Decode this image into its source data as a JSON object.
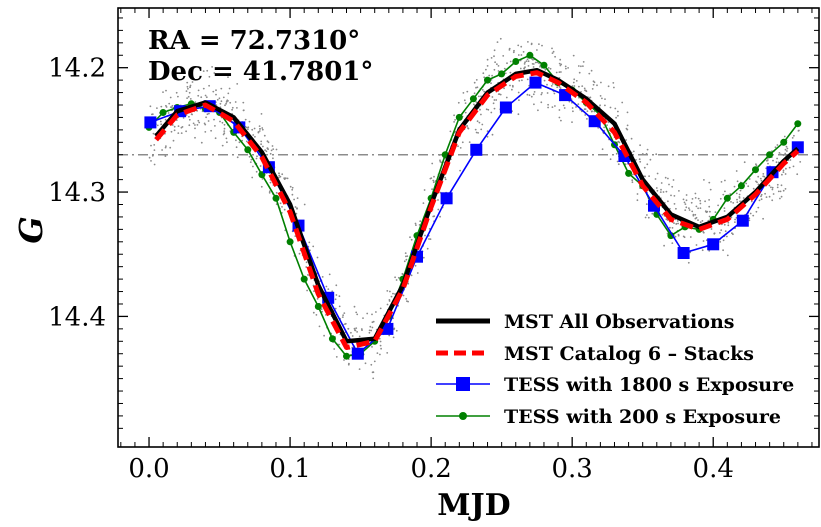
{
  "chart_data": {
    "type": "line",
    "annotations": [
      "RA = 72.7310°",
      "Dec = 41.7801°"
    ],
    "xlabel": "MJD",
    "ylabel": "G",
    "xlim": [
      -0.022,
      0.475
    ],
    "ylim": [
      14.505,
      14.152
    ],
    "y_inverted": true,
    "x_ticks": [
      0.0,
      0.1,
      0.2,
      0.3,
      0.4
    ],
    "x_tick_labels": [
      "0.0",
      "0.1",
      "0.2",
      "0.3",
      "0.4"
    ],
    "y_ticks": [
      14.2,
      14.3,
      14.4
    ],
    "y_tick_labels": [
      "14.2",
      "14.3",
      "14.4"
    ],
    "reference_line_y": 14.27,
    "legend_position": "lower-right",
    "grid": false,
    "series": [
      {
        "name": "MST All Observations",
        "color": "#000000",
        "style": "solid-thick",
        "x": [
          0.005,
          0.02,
          0.04,
          0.06,
          0.08,
          0.1,
          0.12,
          0.14,
          0.16,
          0.18,
          0.2,
          0.22,
          0.24,
          0.26,
          0.275,
          0.29,
          0.31,
          0.33,
          0.35,
          0.37,
          0.39,
          0.41,
          0.43,
          0.45,
          0.46
        ],
        "y": [
          14.255,
          14.235,
          14.228,
          14.24,
          14.268,
          14.31,
          14.375,
          14.42,
          14.418,
          14.375,
          14.31,
          14.25,
          14.22,
          14.205,
          14.202,
          14.21,
          14.225,
          14.245,
          14.29,
          14.318,
          14.328,
          14.32,
          14.3,
          14.275,
          14.265
        ]
      },
      {
        "name": "MST Catalog 6 – Stacks",
        "color": "#ff0000",
        "style": "dashed-thick",
        "x": [
          0.005,
          0.02,
          0.04,
          0.06,
          0.08,
          0.1,
          0.12,
          0.14,
          0.16,
          0.18,
          0.2,
          0.22,
          0.24,
          0.26,
          0.275,
          0.29,
          0.31,
          0.33,
          0.35,
          0.37,
          0.39,
          0.41,
          0.43,
          0.45,
          0.46
        ],
        "y": [
          14.258,
          14.238,
          14.23,
          14.243,
          14.272,
          14.316,
          14.382,
          14.425,
          14.42,
          14.378,
          14.312,
          14.252,
          14.222,
          14.207,
          14.204,
          14.212,
          14.228,
          14.252,
          14.295,
          14.322,
          14.33,
          14.322,
          14.302,
          14.277,
          14.267
        ]
      },
      {
        "name": "TESS with 1800 s Exposure",
        "color": "#0000ff",
        "marker": "square",
        "x": [
          0.001,
          0.022,
          0.043,
          0.064,
          0.085,
          0.106,
          0.127,
          0.148,
          0.169,
          0.19,
          0.211,
          0.232,
          0.253,
          0.274,
          0.295,
          0.316,
          0.337,
          0.358,
          0.379,
          0.4,
          0.421,
          0.442,
          0.46
        ],
        "y": [
          14.244,
          14.235,
          14.231,
          14.248,
          14.28,
          14.327,
          14.385,
          14.43,
          14.41,
          14.352,
          14.305,
          14.266,
          14.232,
          14.212,
          14.222,
          14.243,
          14.271,
          14.311,
          14.349,
          14.342,
          14.323,
          14.284,
          14.264
        ]
      },
      {
        "name": "TESS with 200 s Exposure",
        "color": "#008000",
        "marker": "circle",
        "x": [
          0.0,
          0.01,
          0.02,
          0.03,
          0.04,
          0.05,
          0.06,
          0.07,
          0.08,
          0.09,
          0.1,
          0.11,
          0.12,
          0.13,
          0.14,
          0.15,
          0.16,
          0.17,
          0.18,
          0.19,
          0.2,
          0.21,
          0.22,
          0.23,
          0.24,
          0.25,
          0.26,
          0.27,
          0.28,
          0.29,
          0.3,
          0.31,
          0.32,
          0.33,
          0.34,
          0.35,
          0.36,
          0.37,
          0.38,
          0.39,
          0.4,
          0.41,
          0.42,
          0.43,
          0.44,
          0.45,
          0.46
        ],
        "y": [
          14.248,
          14.236,
          14.232,
          14.229,
          14.233,
          14.236,
          14.252,
          14.266,
          14.286,
          14.305,
          14.34,
          14.37,
          14.392,
          14.418,
          14.432,
          14.43,
          14.42,
          14.4,
          14.37,
          14.335,
          14.305,
          14.27,
          14.24,
          14.225,
          14.21,
          14.205,
          14.195,
          14.19,
          14.198,
          14.212,
          14.218,
          14.228,
          14.238,
          14.262,
          14.285,
          14.295,
          14.318,
          14.335,
          14.328,
          14.33,
          14.322,
          14.305,
          14.295,
          14.282,
          14.27,
          14.26,
          14.245
        ]
      }
    ]
  }
}
